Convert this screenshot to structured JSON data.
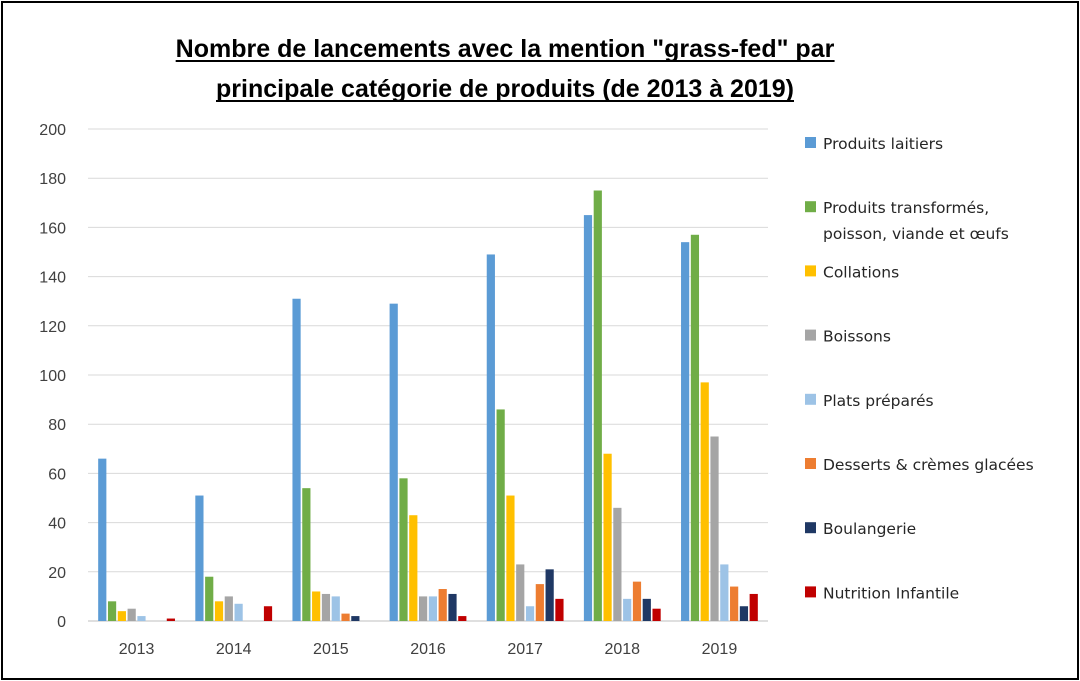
{
  "chart_data": {
    "type": "bar",
    "title_lines": [
      "Nombre de lancements avec la mention \"grass-fed\" par",
      "principale catégorie de produits (de 2013 à 2019)"
    ],
    "categories": [
      "2013",
      "2014",
      "2015",
      "2016",
      "2017",
      "2018",
      "2019"
    ],
    "ylim": [
      0,
      200
    ],
    "yticks": [
      0,
      20,
      40,
      60,
      80,
      100,
      120,
      140,
      160,
      180,
      200
    ],
    "grid": true,
    "legend_position": "right",
    "series": [
      {
        "name": [
          "Produits laitiers"
        ],
        "color": "#5b9bd5",
        "values": [
          66,
          51,
          131,
          129,
          149,
          165,
          154
        ]
      },
      {
        "name": [
          "Produits transformés,",
          "poisson, viande et œufs"
        ],
        "color": "#70ad47",
        "values": [
          8,
          18,
          54,
          58,
          86,
          175,
          157
        ]
      },
      {
        "name": [
          "Collations"
        ],
        "color": "#ffc000",
        "values": [
          4,
          8,
          12,
          43,
          51,
          68,
          97
        ]
      },
      {
        "name": [
          "Boissons"
        ],
        "color": "#a5a5a5",
        "values": [
          5,
          10,
          11,
          10,
          23,
          46,
          75
        ]
      },
      {
        "name": [
          "Plats préparés"
        ],
        "color": "#9dc3e6",
        "values": [
          2,
          7,
          10,
          10,
          6,
          9,
          23
        ]
      },
      {
        "name": [
          "Desserts & crèmes glacées"
        ],
        "color": "#ed7d31",
        "values": [
          0,
          0,
          3,
          13,
          15,
          16,
          14
        ]
      },
      {
        "name": [
          "Boulangerie"
        ],
        "color": "#1f3864",
        "values": [
          0,
          0,
          2,
          11,
          21,
          9,
          6
        ]
      },
      {
        "name": [
          "Nutrition Infantile"
        ],
        "color": "#c00000",
        "values": [
          1,
          6,
          0,
          2,
          9,
          5,
          11
        ]
      }
    ]
  }
}
